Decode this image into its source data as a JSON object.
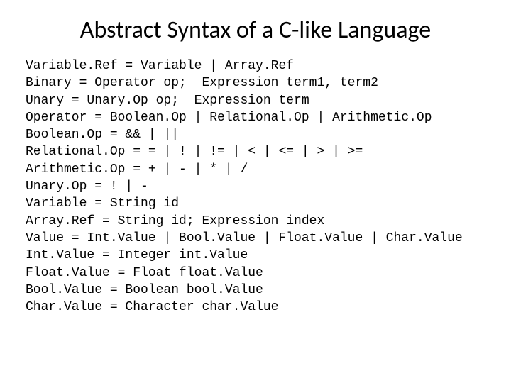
{
  "title": "Abstract Syntax of a C-like Language",
  "grammar": {
    "lines": [
      "Variable.Ref = Variable | Array.Ref",
      "Binary = Operator op;  Expression term1, term2",
      "Unary = Unary.Op op;  Expression term",
      "Operator = Boolean.Op | Relational.Op | Arithmetic.Op",
      "Boolean.Op = && | ||",
      "Relational.Op = = | ! | != | < | <= | > | >=",
      "Arithmetic.Op = + | - | * | /",
      "Unary.Op = ! | -",
      "Variable = String id",
      "Array.Ref = String id; Expression index",
      "Value = Int.Value | Bool.Value | Float.Value | Char.Value",
      "Int.Value = Integer int.Value",
      "Float.Value = Float float.Value",
      "Bool.Value = Boolean bool.Value",
      "Char.Value = Character char.Value"
    ]
  },
  "style": {
    "background_color": "#ffffff",
    "text_color": "#000000",
    "title_fontsize": 34,
    "title_font": "Calibri",
    "body_fontsize": 18,
    "body_font": "Courier New",
    "line_height": 1.35,
    "slide_width": 720,
    "slide_height": 540
  }
}
